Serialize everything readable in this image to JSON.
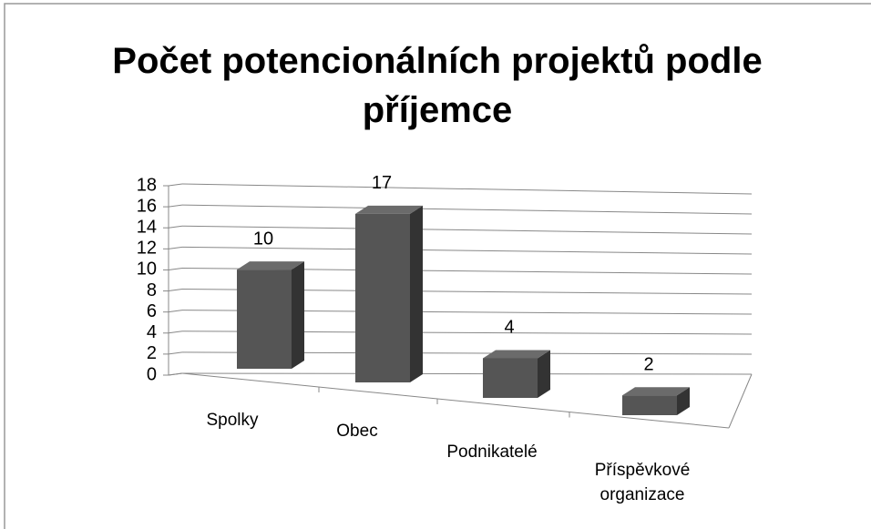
{
  "chart_data": {
    "type": "bar3d",
    "title": "Počet potencionálních projektů podle příjemce",
    "categories": [
      "Spolky",
      "Obec",
      "Podnikatelé",
      "Příspěvkové organizace"
    ],
    "values": [
      10,
      17,
      4,
      2
    ],
    "color": "#555555",
    "ylim": [
      0,
      18
    ],
    "yticks": [
      0,
      2,
      4,
      6,
      8,
      10,
      12,
      14,
      16,
      18
    ],
    "grid": true
  }
}
